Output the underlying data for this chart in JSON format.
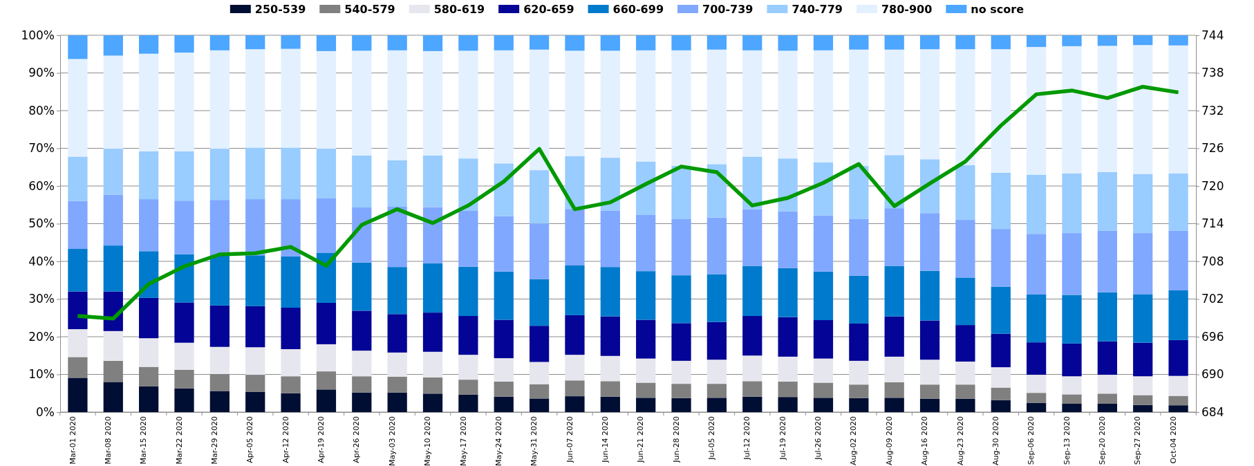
{
  "chart_data": {
    "type": "bar",
    "stacked": true,
    "grid": "y",
    "legend": "top",
    "categories": [
      "Mar-01 2020",
      "Mar-08 2020",
      "Mar-15 2020",
      "Mar-22 2020",
      "Mar-29 2020",
      "Apr-05 2020",
      "Apr-12 2020",
      "Apr-19 2020",
      "Apr-26 2020",
      "May-03 2020",
      "May-10 2020",
      "May-17 2020",
      "May-24 2020",
      "May-31 2020",
      "Jun-07 2020",
      "Jun-14 2020",
      "Jun-21 2020",
      "Jun-28 2020",
      "Jul-05 2020",
      "Jul-12 2020",
      "Jul-19 2020",
      "Jul-26 2020",
      "Aug-02 2020",
      "Aug-09 2020",
      "Aug-16 2020",
      "Aug-23 2020",
      "Aug-30 2020",
      "Sep-06 2020",
      "Sep-13 2020",
      "Sep-20 2020",
      "Sep-27 2020",
      "Oct-04 2020"
    ],
    "ylim": [
      0,
      100
    ],
    "yticks": [
      {
        "value": 0,
        "label": "0%"
      },
      {
        "value": 10,
        "label": "10%"
      },
      {
        "value": 20,
        "label": "20%"
      },
      {
        "value": 30,
        "label": "30%"
      },
      {
        "value": 40,
        "label": "40%"
      },
      {
        "value": 50,
        "label": "50%"
      },
      {
        "value": 60,
        "label": "60%"
      },
      {
        "value": 70,
        "label": "70%"
      },
      {
        "value": 80,
        "label": "80%"
      },
      {
        "value": 90,
        "label": "90%"
      },
      {
        "value": 100,
        "label": "100%"
      }
    ],
    "y2lim": [
      684,
      744
    ],
    "y2ticks": [
      684,
      690,
      696,
      702,
      708,
      714,
      720,
      726,
      732,
      738,
      744
    ],
    "series": [
      {
        "name": "250-539",
        "color": "#000e33",
        "values": [
          9.1,
          8.0,
          6.8,
          6.3,
          5.6,
          5.4,
          5.0,
          6.0,
          5.2,
          5.2,
          4.9,
          4.6,
          4.1,
          3.6,
          4.2,
          4.1,
          3.8,
          3.7,
          3.8,
          4.1,
          4.0,
          3.8,
          3.7,
          3.8,
          3.5,
          3.5,
          3.2,
          2.4,
          2.2,
          2.2,
          1.9,
          1.8
        ]
      },
      {
        "name": "540-579",
        "color": "#808080",
        "values": [
          5.5,
          5.6,
          5.2,
          4.9,
          4.5,
          4.5,
          4.5,
          4.8,
          4.3,
          4.2,
          4.3,
          4.0,
          4.0,
          3.8,
          4.2,
          4.1,
          4.0,
          3.8,
          3.7,
          4.1,
          4.1,
          4.0,
          3.6,
          4.1,
          3.8,
          3.8,
          3.3,
          2.7,
          2.5,
          2.7,
          2.6,
          2.5
        ]
      },
      {
        "name": "580-619",
        "color": "#e6e6ee",
        "values": [
          7.4,
          7.9,
          7.6,
          7.2,
          7.2,
          7.3,
          7.2,
          7.2,
          6.8,
          6.4,
          6.8,
          6.6,
          6.2,
          5.9,
          6.8,
          6.7,
          6.4,
          6.1,
          6.4,
          6.8,
          6.6,
          6.4,
          6.3,
          6.8,
          6.6,
          6.1,
          5.4,
          4.8,
          4.8,
          5.0,
          5.0,
          5.3
        ]
      },
      {
        "name": "620-659",
        "color": "#040496",
        "values": [
          10.0,
          10.5,
          10.7,
          10.7,
          11.0,
          10.9,
          11.0,
          11.0,
          10.6,
          10.2,
          10.4,
          10.3,
          10.2,
          9.6,
          10.5,
          10.5,
          10.3,
          10.0,
          10.0,
          10.5,
          10.5,
          10.2,
          9.9,
          10.7,
          10.4,
          9.7,
          8.9,
          8.6,
          8.7,
          8.9,
          8.9,
          9.5
        ]
      },
      {
        "name": "660-699",
        "color": "#007acc",
        "values": [
          11.3,
          12.2,
          12.4,
          12.8,
          13.3,
          13.5,
          13.6,
          13.2,
          12.8,
          12.5,
          13.1,
          13.1,
          12.8,
          12.4,
          13.2,
          13.1,
          12.9,
          12.7,
          12.7,
          13.3,
          13.0,
          12.9,
          12.7,
          13.4,
          13.2,
          12.6,
          12.5,
          12.7,
          12.9,
          13.0,
          12.9,
          13.2
        ]
      },
      {
        "name": "700-739",
        "color": "#80a8ff",
        "values": [
          12.7,
          13.5,
          13.8,
          14.2,
          14.7,
          14.9,
          15.2,
          14.5,
          14.6,
          16.0,
          14.9,
          14.8,
          14.7,
          14.7,
          15.0,
          15.0,
          14.9,
          14.9,
          15.0,
          15.0,
          15.1,
          14.9,
          15.0,
          15.3,
          15.3,
          15.3,
          15.3,
          16.1,
          16.4,
          16.3,
          16.2,
          15.8
        ]
      },
      {
        "name": "740-779",
        "color": "#99ccff",
        "values": [
          11.8,
          12.2,
          12.7,
          13.1,
          13.6,
          13.7,
          13.7,
          13.2,
          13.8,
          12.3,
          13.7,
          13.9,
          14.0,
          14.2,
          14.0,
          14.0,
          14.2,
          14.2,
          14.2,
          14.0,
          14.0,
          14.1,
          14.1,
          14.1,
          14.3,
          14.5,
          14.9,
          15.7,
          15.8,
          15.6,
          15.7,
          15.2
        ]
      },
      {
        "name": "780-900",
        "color": "#e3f0ff",
        "values": [
          25.9,
          24.7,
          25.9,
          26.2,
          26.1,
          26.1,
          26.2,
          25.9,
          27.8,
          29.2,
          27.7,
          28.6,
          30.0,
          32.0,
          28.0,
          28.4,
          29.5,
          30.6,
          30.4,
          28.2,
          28.6,
          29.7,
          30.9,
          28.0,
          29.2,
          30.8,
          32.8,
          33.9,
          33.8,
          33.5,
          34.2,
          34.0
        ]
      },
      {
        "name": "no score",
        "color": "#4da6ff",
        "values": [
          6.3,
          5.4,
          4.9,
          4.6,
          4.0,
          3.7,
          3.6,
          4.2,
          4.1,
          4.0,
          4.2,
          4.1,
          4.0,
          3.8,
          4.1,
          4.1,
          4.0,
          4.0,
          3.8,
          4.0,
          4.1,
          4.0,
          3.8,
          3.8,
          3.7,
          3.7,
          3.7,
          3.1,
          2.9,
          2.8,
          2.6,
          2.7
        ]
      },
      {
        "type": "line",
        "axis": "y2",
        "color": "#009900",
        "line_style": "solid",
        "marker": "none",
        "values": [
          699.3,
          698.9,
          704.4,
          707.2,
          709.1,
          709.3,
          710.3,
          707.3,
          713.8,
          716.3,
          714.1,
          716.9,
          720.7,
          725.9,
          716.3,
          717.4,
          720.3,
          723.1,
          722.2,
          716.9,
          718.1,
          720.5,
          723.5,
          716.8,
          720.4,
          723.9,
          729.6,
          734.6,
          735.2,
          734.0,
          735.8,
          734.9
        ]
      }
    ]
  }
}
